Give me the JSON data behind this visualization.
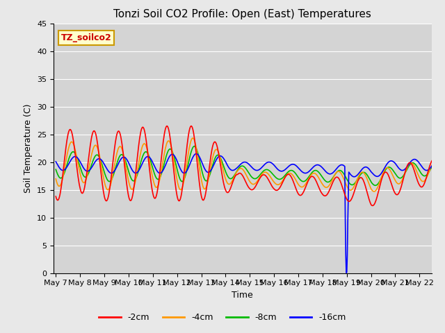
{
  "title": "Tonzi Soil CO2 Profile: Open (East) Temperatures",
  "xlabel": "Time",
  "ylabel": "Soil Temperature (C)",
  "ylim": [
    0,
    45
  ],
  "bg_color": "#e8e8e8",
  "plot_bg_color_light": "#e0e0e0",
  "plot_bg_color_dark": "#c8c8c8",
  "annotation_box": "TZ_soilco2",
  "annotation_box_color": "#ffffcc",
  "annotation_box_edge": "#cc9900",
  "annotation_text_color": "#cc0000",
  "legend_entries": [
    "-2cm",
    "-4cm",
    "-8cm",
    "-16cm"
  ],
  "line_colors": [
    "#ff0000",
    "#ff9900",
    "#00bb00",
    "#0000ff"
  ],
  "tick_label_size": 8
}
